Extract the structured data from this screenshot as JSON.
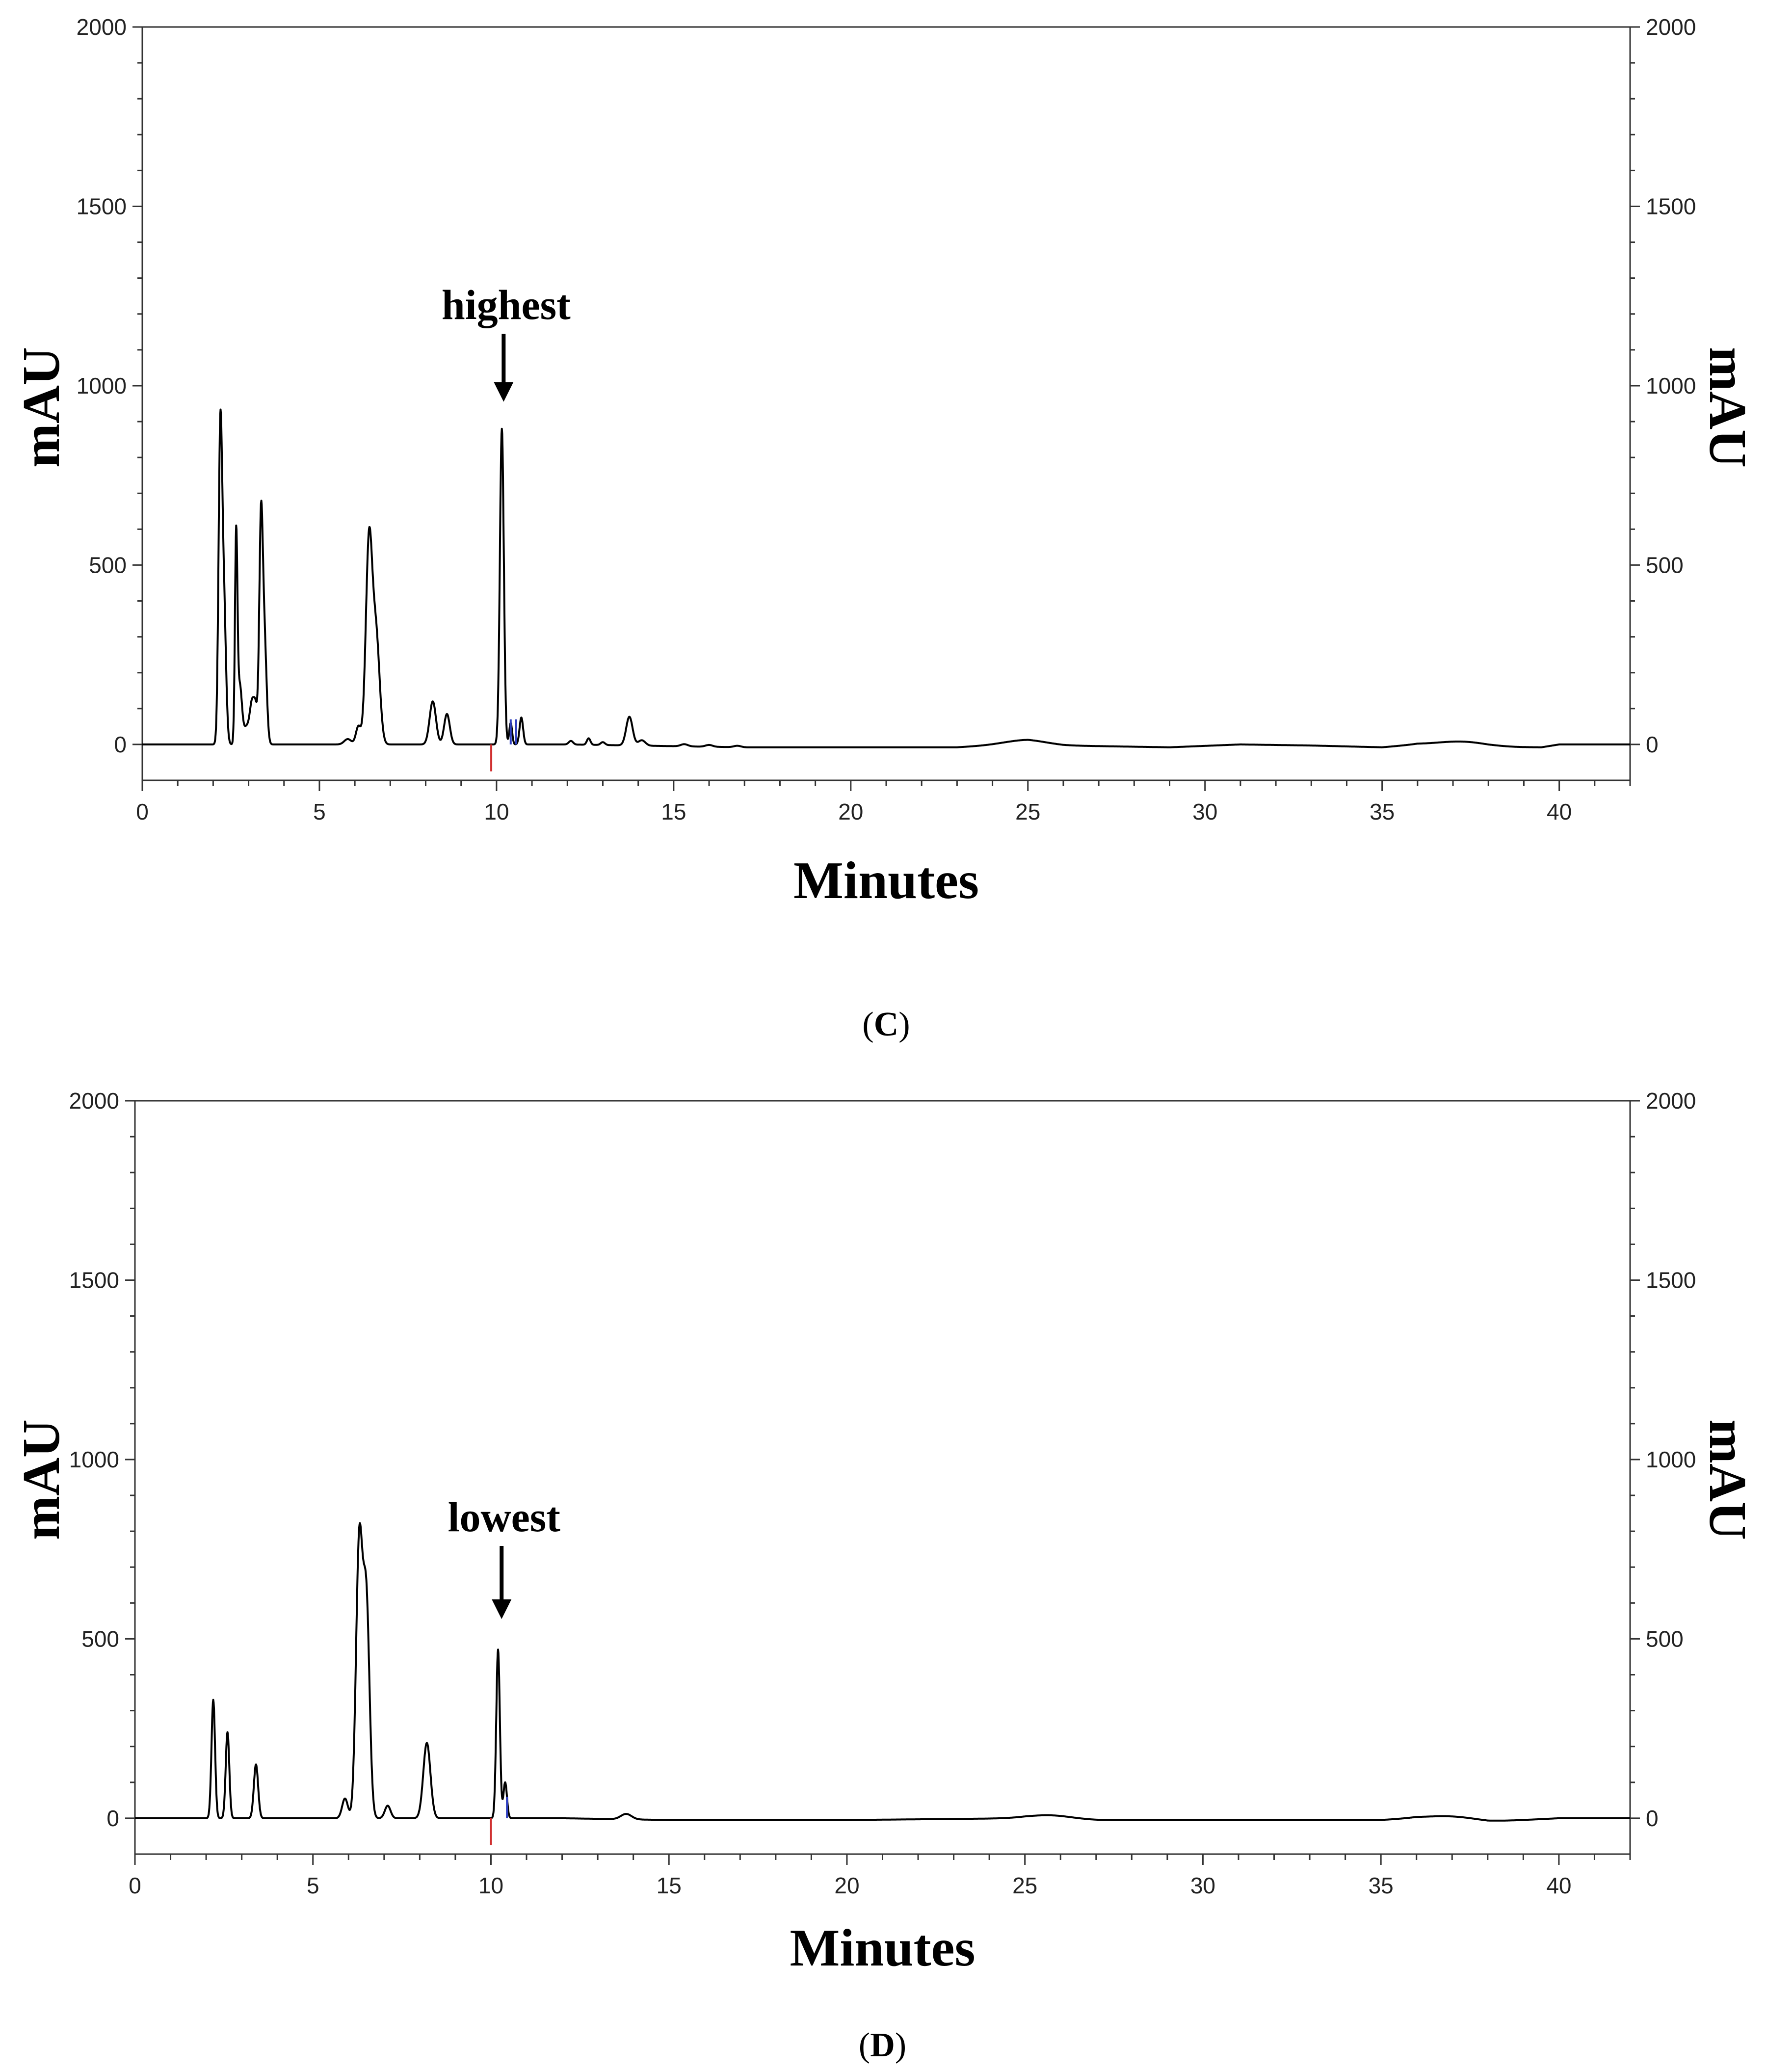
{
  "chart_data": [
    {
      "type": "line",
      "panel_label": "(C)",
      "panel_letter": "C",
      "xlabel": "Minutes",
      "ylabel": "mAU",
      "ylabel_right": "mAU",
      "xlim": [
        0,
        42
      ],
      "ylim": [
        -100,
        2000
      ],
      "x_ticks": [
        0,
        5,
        10,
        15,
        20,
        25,
        30,
        35,
        40
      ],
      "y_ticks": [
        0,
        500,
        1000,
        1500,
        2000
      ],
      "grid": false,
      "annotation": {
        "text": "highest",
        "x": 10.2,
        "points_to": 880
      },
      "markers": [
        {
          "x": 9.85,
          "value": -75,
          "color": "#d03030"
        },
        {
          "x": 10.4,
          "value": 70,
          "color": "#3040c0"
        },
        {
          "x": 10.55,
          "value": 70,
          "color": "#3040c0"
        }
      ],
      "peaks": [
        [
          2.2,
          820,
          0.05
        ],
        [
          2.3,
          400,
          0.06
        ],
        [
          2.65,
          570,
          0.035
        ],
        [
          2.75,
          160,
          0.06
        ],
        [
          2.95,
          50,
          0.1
        ],
        [
          3.1,
          100,
          0.06
        ],
        [
          3.2,
          90,
          0.05
        ],
        [
          3.35,
          600,
          0.05
        ],
        [
          3.45,
          280,
          0.06
        ],
        [
          5.8,
          15,
          0.1
        ],
        [
          6.1,
          50,
          0.07
        ],
        [
          6.4,
          560,
          0.09
        ],
        [
          6.6,
          300,
          0.1
        ],
        [
          8.2,
          120,
          0.09
        ],
        [
          8.6,
          85,
          0.08
        ],
        [
          10.15,
          880,
          0.055
        ],
        [
          10.4,
          60,
          0.04
        ],
        [
          10.7,
          75,
          0.05
        ],
        [
          12.1,
          10,
          0.06
        ],
        [
          12.6,
          18,
          0.05
        ],
        [
          13.0,
          8,
          0.06
        ],
        [
          13.75,
          80,
          0.09
        ],
        [
          14.1,
          15,
          0.1
        ],
        [
          15.3,
          6,
          0.1
        ],
        [
          16.0,
          5,
          0.1
        ],
        [
          16.8,
          4,
          0.1
        ],
        [
          24.9,
          10,
          0.6
        ],
        [
          37.3,
          13,
          0.7
        ]
      ],
      "baseline_drift": [
        [
          0,
          0
        ],
        [
          12,
          0
        ],
        [
          17,
          -8
        ],
        [
          23,
          -8
        ],
        [
          25,
          3
        ],
        [
          26,
          -3
        ],
        [
          29,
          -8
        ],
        [
          31,
          0
        ],
        [
          33,
          -3
        ],
        [
          35,
          -8
        ],
        [
          36,
          0
        ],
        [
          38,
          -8
        ],
        [
          39.5,
          -8
        ],
        [
          40,
          0
        ],
        [
          42,
          0
        ]
      ]
    },
    {
      "type": "line",
      "panel_label": "(D)",
      "panel_letter": "D",
      "xlabel": "Minutes",
      "ylabel": "mAU",
      "ylabel_right": "mAU",
      "xlim": [
        0,
        42
      ],
      "ylim": [
        -100,
        2000
      ],
      "x_ticks": [
        0,
        5,
        10,
        15,
        20,
        25,
        30,
        35,
        40
      ],
      "y_ticks": [
        0,
        500,
        1000,
        1500,
        2000
      ],
      "grid": false,
      "annotation": {
        "text": "lowest",
        "x": 10.3,
        "points_to": 480
      },
      "markers": [
        {
          "x": 10.0,
          "value": -75,
          "color": "#d03030"
        },
        {
          "x": 10.45,
          "value": 60,
          "color": "#3040c0"
        }
      ],
      "peaks": [
        [
          2.2,
          330,
          0.05
        ],
        [
          2.6,
          240,
          0.05
        ],
        [
          3.4,
          150,
          0.06
        ],
        [
          5.9,
          55,
          0.08
        ],
        [
          6.3,
          760,
          0.09
        ],
        [
          6.5,
          600,
          0.09
        ],
        [
          7.1,
          35,
          0.08
        ],
        [
          8.2,
          210,
          0.1
        ],
        [
          10.2,
          470,
          0.05
        ],
        [
          10.4,
          100,
          0.05
        ],
        [
          13.8,
          15,
          0.15
        ],
        [
          25.7,
          10,
          0.6
        ],
        [
          37.0,
          10,
          0.7
        ]
      ],
      "baseline_drift": [
        [
          0,
          0
        ],
        [
          12,
          0
        ],
        [
          15,
          -5
        ],
        [
          20,
          -5
        ],
        [
          25,
          0
        ],
        [
          27,
          -5
        ],
        [
          35,
          -5
        ],
        [
          36,
          0
        ],
        [
          38,
          -10
        ],
        [
          40,
          0
        ],
        [
          42,
          0
        ]
      ]
    }
  ]
}
